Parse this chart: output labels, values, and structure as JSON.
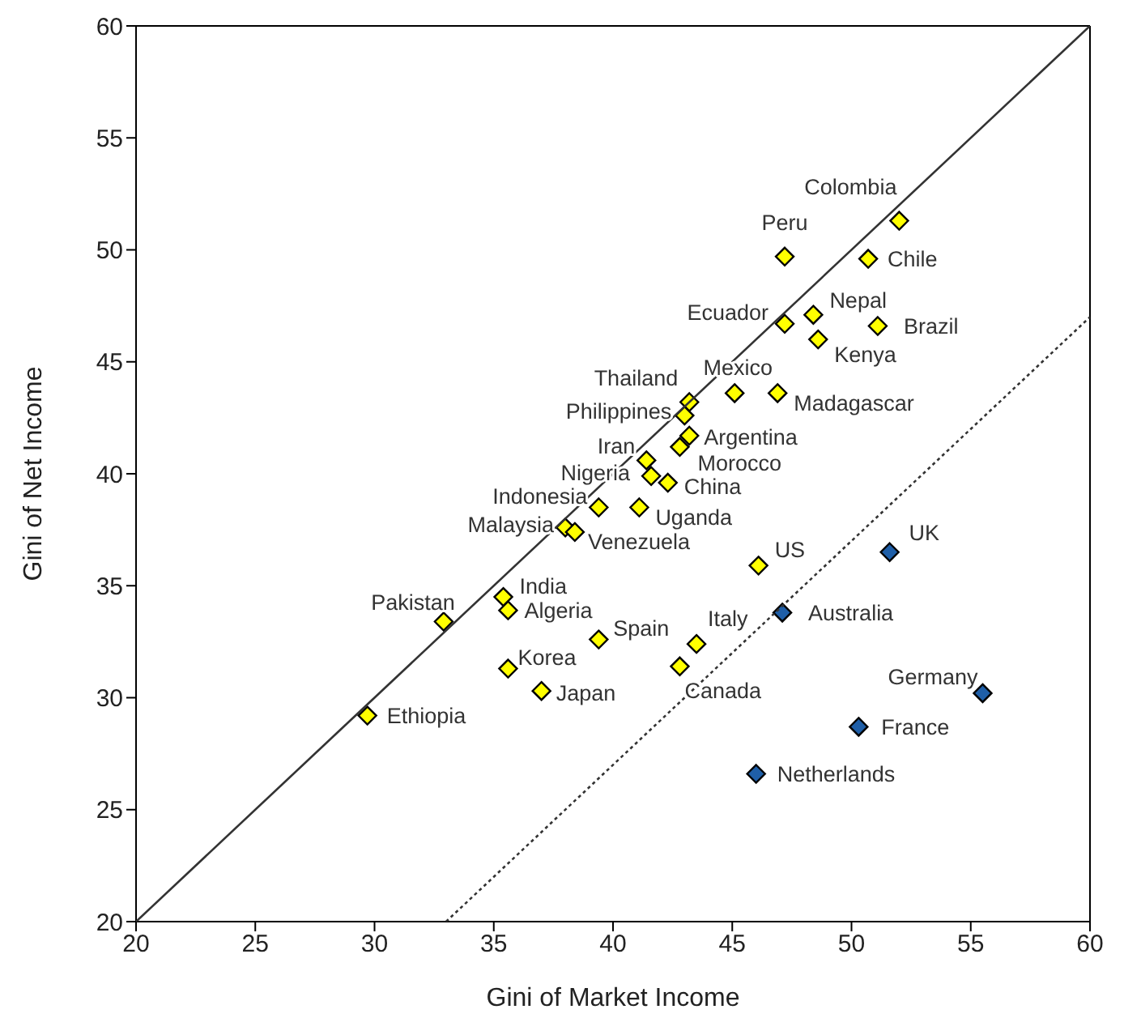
{
  "chart_data": {
    "type": "scatter",
    "xlabel": "Gini of Market Income",
    "ylabel": "Gini of Net Income",
    "xlim": [
      20,
      60
    ],
    "xticks": [
      20,
      25,
      30,
      35,
      40,
      45,
      50,
      55,
      60
    ],
    "ylim": [
      20,
      60
    ],
    "yticks": [
      20,
      25,
      30,
      35,
      40,
      45,
      50,
      55,
      60
    ],
    "grid": false,
    "legend": false,
    "marker": "diamond",
    "series": [
      {
        "color": "#ffff00",
        "x": [
          52.0,
          47.2,
          50.7,
          47.2,
          48.4,
          51.1,
          48.6,
          45.1,
          46.9,
          43.2,
          43.0,
          43.2,
          42.8,
          41.4,
          41.6,
          42.3,
          39.4,
          41.1,
          38.0,
          38.4,
          46.1,
          32.9,
          35.4,
          35.6,
          39.4,
          43.5,
          35.6,
          42.8,
          37.0,
          29.7
        ],
        "values": [
          51.3,
          49.7,
          49.6,
          46.7,
          47.1,
          46.6,
          46.0,
          43.6,
          43.6,
          43.2,
          42.6,
          41.7,
          41.2,
          40.6,
          39.9,
          39.6,
          38.5,
          38.5,
          37.6,
          37.4,
          35.9,
          33.4,
          34.5,
          33.9,
          32.6,
          32.4,
          31.3,
          31.4,
          30.3,
          29.2
        ]
      },
      {
        "color": "#1f5fa8",
        "x": [
          47.1,
          51.6,
          55.5,
          50.3,
          46.0
        ],
        "values": [
          33.8,
          36.5,
          30.2,
          28.7,
          26.6
        ]
      },
      {
        "type": "line",
        "color": "#333333",
        "line_style": "solid",
        "marker": "none",
        "x": [
          20,
          60
        ],
        "values": [
          20,
          60
        ]
      },
      {
        "type": "line",
        "color": "#333333",
        "line_style": "dotted",
        "marker": "none",
        "x": [
          33,
          60
        ],
        "values": [
          20,
          47
        ]
      }
    ],
    "annotations": [
      {
        "text": "Colombia",
        "x": 52.0,
        "y": 51.3
      },
      {
        "text": "Peru",
        "x": 47.2,
        "y": 49.7
      },
      {
        "text": "Chile",
        "x": 50.7,
        "y": 49.6
      },
      {
        "text": "Ecuador",
        "x": 47.2,
        "y": 46.7
      },
      {
        "text": "Nepal",
        "x": 48.4,
        "y": 47.1
      },
      {
        "text": "Brazil",
        "x": 51.1,
        "y": 46.6
      },
      {
        "text": "Kenya",
        "x": 48.6,
        "y": 46.0
      },
      {
        "text": "Mexico",
        "x": 45.1,
        "y": 43.6
      },
      {
        "text": "Madagascar",
        "x": 46.9,
        "y": 43.6
      },
      {
        "text": "Thailand",
        "x": 43.2,
        "y": 43.2
      },
      {
        "text": "Philippines",
        "x": 43.0,
        "y": 42.6
      },
      {
        "text": "Argentina",
        "x": 43.2,
        "y": 41.7
      },
      {
        "text": "Morocco",
        "x": 42.8,
        "y": 41.2
      },
      {
        "text": "Iran",
        "x": 41.4,
        "y": 40.6
      },
      {
        "text": "Nigeria",
        "x": 41.6,
        "y": 39.9
      },
      {
        "text": "China",
        "x": 42.3,
        "y": 39.6
      },
      {
        "text": "Indonesia",
        "x": 39.4,
        "y": 38.5
      },
      {
        "text": "Uganda",
        "x": 41.1,
        "y": 38.5
      },
      {
        "text": "Malaysia",
        "x": 38.0,
        "y": 37.6
      },
      {
        "text": "Venezuela",
        "x": 38.4,
        "y": 37.4
      },
      {
        "text": "US",
        "x": 46.1,
        "y": 35.9
      },
      {
        "text": "Pakistan",
        "x": 32.9,
        "y": 33.4
      },
      {
        "text": "India",
        "x": 35.4,
        "y": 34.5
      },
      {
        "text": "Algeria",
        "x": 35.6,
        "y": 33.9
      },
      {
        "text": "Spain",
        "x": 39.4,
        "y": 32.6
      },
      {
        "text": "Italy",
        "x": 43.5,
        "y": 32.4
      },
      {
        "text": "Korea",
        "x": 35.6,
        "y": 31.3
      },
      {
        "text": "Canada",
        "x": 42.8,
        "y": 31.4
      },
      {
        "text": "Japan",
        "x": 37.0,
        "y": 30.3
      },
      {
        "text": "Ethiopia",
        "x": 29.7,
        "y": 29.2
      },
      {
        "text": "Australia",
        "x": 47.1,
        "y": 33.8
      },
      {
        "text": "UK",
        "x": 51.6,
        "y": 36.5
      },
      {
        "text": "Germany",
        "x": 55.5,
        "y": 30.2
      },
      {
        "text": "France",
        "x": 50.3,
        "y": 28.7
      },
      {
        "text": "Netherlands",
        "x": 46.0,
        "y": 26.6
      }
    ]
  }
}
